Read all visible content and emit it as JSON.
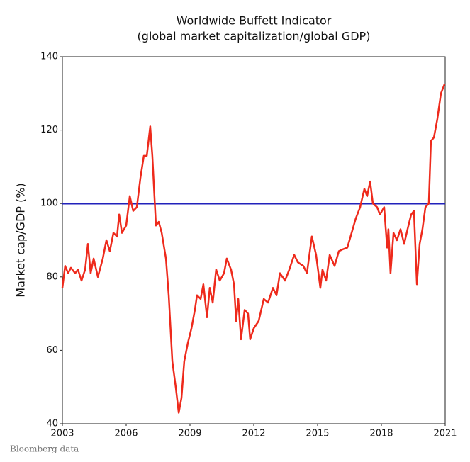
{
  "chart_data": {
    "type": "line",
    "title": "Worldwide Buffett Indicator",
    "subtitle": "(global market capitalization/global GDP)",
    "y_label": "Market cap/GDP (%)",
    "source": "Bloomberg data",
    "x": [
      2003.0,
      2003.13,
      2003.27,
      2003.4,
      2003.6,
      2003.73,
      2003.9,
      2004.07,
      2004.2,
      2004.33,
      2004.47,
      2004.67,
      2004.9,
      2005.07,
      2005.23,
      2005.4,
      2005.57,
      2005.67,
      2005.8,
      2006.0,
      2006.17,
      2006.33,
      2006.5,
      2006.67,
      2006.83,
      2006.97,
      2007.13,
      2007.23,
      2007.4,
      2007.53,
      2007.67,
      2007.87,
      2008.0,
      2008.17,
      2008.33,
      2008.47,
      2008.6,
      2008.73,
      2008.9,
      2009.07,
      2009.23,
      2009.33,
      2009.5,
      2009.63,
      2009.8,
      2009.93,
      2010.07,
      2010.23,
      2010.4,
      2010.6,
      2010.73,
      2010.93,
      2011.07,
      2011.17,
      2011.27,
      2011.4,
      2011.57,
      2011.73,
      2011.83,
      2012.0,
      2012.23,
      2012.47,
      2012.67,
      2012.9,
      2013.07,
      2013.23,
      2013.47,
      2013.67,
      2013.9,
      2014.07,
      2014.33,
      2014.5,
      2014.73,
      2014.93,
      2015.13,
      2015.23,
      2015.4,
      2015.57,
      2015.8,
      2016.0,
      2016.17,
      2016.4,
      2016.6,
      2016.8,
      2017.0,
      2017.2,
      2017.33,
      2017.47,
      2017.6,
      2017.8,
      2017.93,
      2018.13,
      2018.27,
      2018.33,
      2018.43,
      2018.57,
      2018.73,
      2018.9,
      2019.07,
      2019.23,
      2019.4,
      2019.53,
      2019.67,
      2019.8,
      2019.93,
      2020.07,
      2020.23,
      2020.33,
      2020.47,
      2020.63,
      2020.8,
      2020.97
    ],
    "series": [
      {
        "name": "Buffett Indicator",
        "color": "#ee2a1c",
        "values": [
          77,
          83,
          81,
          82.5,
          81,
          82,
          79,
          82,
          89,
          81,
          85,
          80,
          85,
          90,
          87,
          92,
          91,
          97,
          92,
          94,
          102,
          98,
          99,
          107,
          113,
          113,
          121,
          113,
          94,
          95,
          92,
          85,
          75,
          57,
          50,
          43,
          47,
          57,
          62,
          66,
          71,
          75,
          74,
          78,
          69,
          77,
          73,
          82,
          79,
          81,
          85,
          82,
          78,
          68,
          74,
          63,
          71,
          70,
          63,
          66,
          68,
          74,
          73,
          77,
          75,
          81,
          79,
          82,
          86,
          84,
          83,
          81,
          91,
          86,
          77,
          82,
          79,
          86,
          83,
          87,
          87.5,
          88,
          92,
          96,
          99,
          104,
          102,
          106,
          100,
          99,
          97,
          99,
          88,
          93,
          81,
          92,
          90,
          93,
          89,
          93,
          97,
          98,
          78,
          89,
          93,
          99,
          100,
          117,
          118,
          123,
          130,
          132.5
        ]
      }
    ],
    "reference_line": {
      "value": 100,
      "color": "#2222bb"
    },
    "xlim": [
      2003,
      2021
    ],
    "xticks": [
      2003,
      2006,
      2009,
      2012,
      2015,
      2018,
      2021
    ],
    "ylim": [
      40,
      140
    ],
    "yticks": [
      40,
      60,
      80,
      100,
      120,
      140
    ]
  }
}
